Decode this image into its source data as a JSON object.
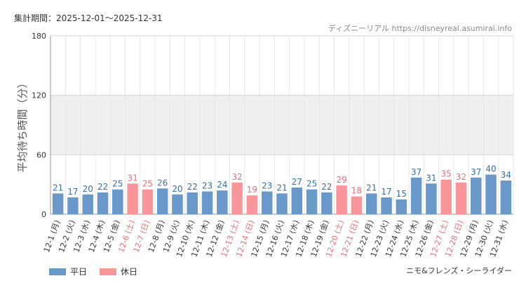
{
  "header": {
    "period_label": "集計期間：2025-12-01～2025-12-31",
    "source": "ディズニーリアル https://disneyreal.asumirai.info"
  },
  "footer": {
    "attraction": "ニモ&フレンズ・シーライダー"
  },
  "legend": [
    {
      "label": "平日",
      "color": "#6a98c8"
    },
    {
      "label": "休日",
      "color": "#f7969b"
    }
  ],
  "colors": {
    "weekday": "#6a98c8",
    "holiday": "#f7969b",
    "weekday_label": "#3a6fa6",
    "holiday_label": "#e86f77",
    "band": "#efefef"
  },
  "chart_data": {
    "type": "bar",
    "ylabel": "平均待ち時間（分）",
    "ylim": [
      0,
      180
    ],
    "yticks": [
      0,
      60,
      120,
      180
    ],
    "grid": true,
    "legend_position": "bottom-left",
    "categories": [
      "12-1 (月)",
      "12-2 (火)",
      "12-3 (水)",
      "12-4 (木)",
      "12-5 (金)",
      "12-6 (土)",
      "12-7 (日)",
      "12-8 (月)",
      "12-9 (火)",
      "12-10 (水)",
      "12-11 (木)",
      "12-12 (金)",
      "12-13 (土)",
      "12-14 (日)",
      "12-15 (月)",
      "12-16 (火)",
      "12-17 (水)",
      "12-18 (木)",
      "12-19 (金)",
      "12-20 (土)",
      "12-21 (日)",
      "12-22 (月)",
      "12-23 (火)",
      "12-24 (水)",
      "12-25 (木)",
      "12-26 (金)",
      "12-27 (土)",
      "12-28 (日)",
      "12-29 (月)",
      "12-30 (火)",
      "12-31 (水)"
    ],
    "values": [
      21,
      17,
      20,
      22,
      25,
      31,
      25,
      26,
      20,
      22,
      23,
      24,
      32,
      19,
      23,
      21,
      27,
      25,
      22,
      29,
      18,
      21,
      17,
      15,
      37,
      31,
      35,
      32,
      37,
      40,
      34
    ],
    "day_type": [
      "平日",
      "平日",
      "平日",
      "平日",
      "平日",
      "休日",
      "休日",
      "平日",
      "平日",
      "平日",
      "平日",
      "平日",
      "休日",
      "休日",
      "平日",
      "平日",
      "平日",
      "平日",
      "平日",
      "休日",
      "休日",
      "平日",
      "平日",
      "平日",
      "平日",
      "平日",
      "休日",
      "休日",
      "平日",
      "平日",
      "平日"
    ]
  }
}
